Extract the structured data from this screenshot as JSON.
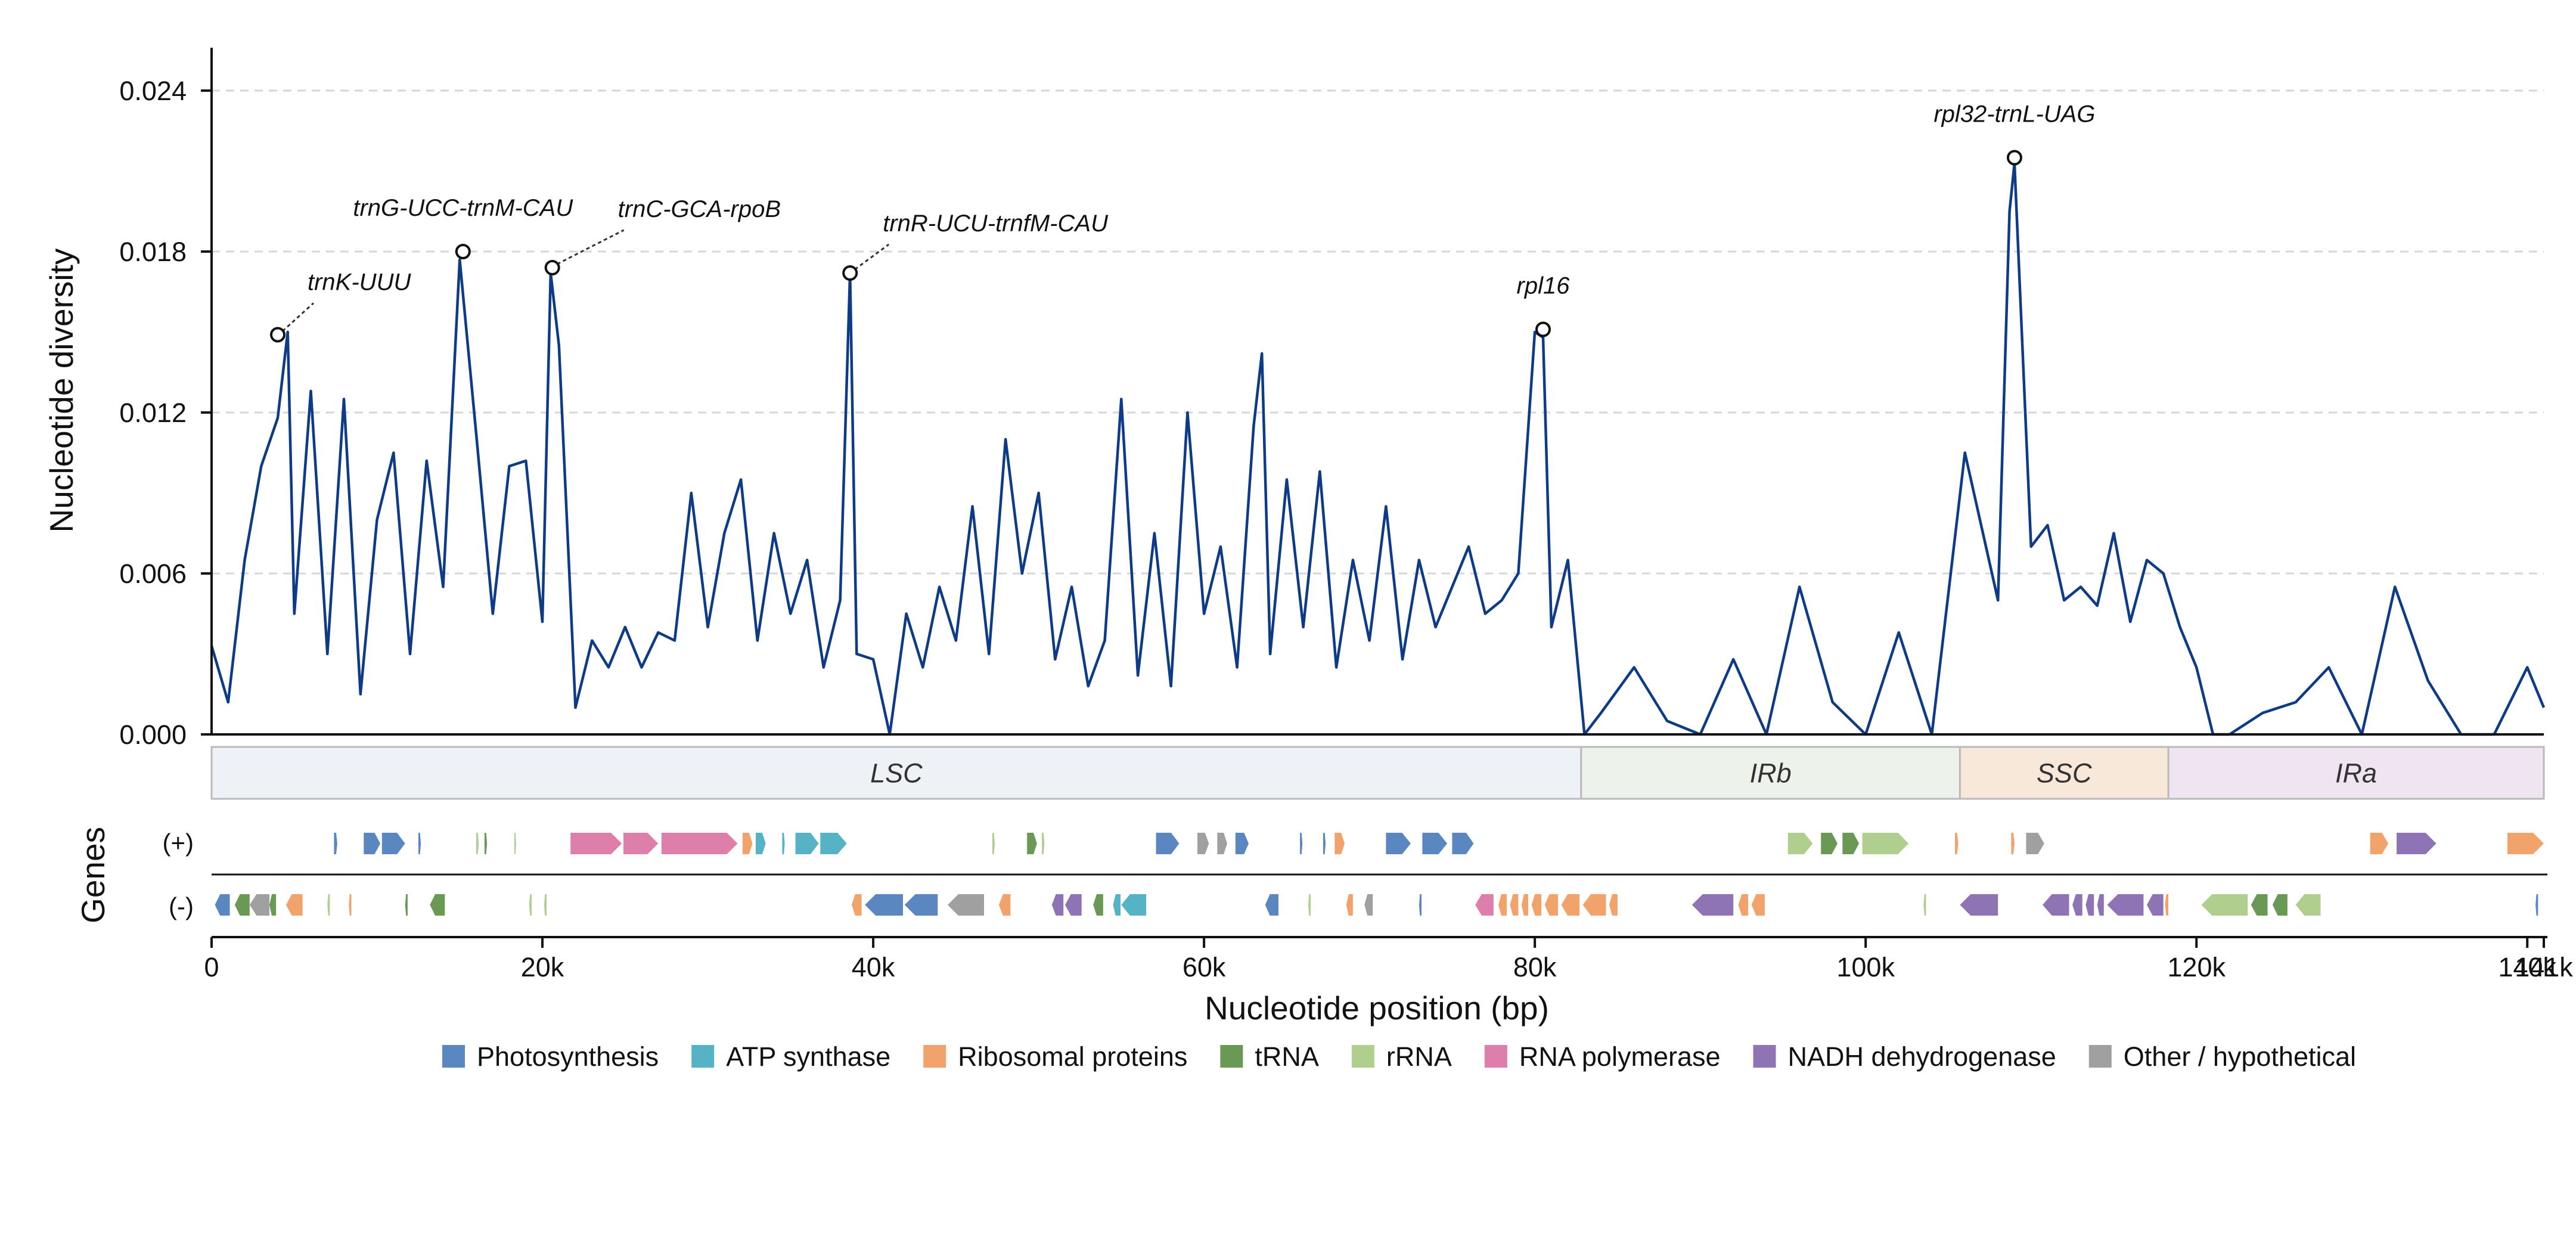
{
  "chart_data": {
    "type": "line",
    "ylabel": "Nucleotide diversity",
    "xlabel": "Nucleotide position (bp)",
    "ylim": [
      0,
      0.0256
    ],
    "xlim": [
      0,
      141000
    ],
    "y_ticks": [
      {
        "value": 0.0,
        "label": "0.000"
      },
      {
        "value": 0.006,
        "label": "0.006"
      },
      {
        "value": 0.012,
        "label": "0.012"
      },
      {
        "value": 0.018,
        "label": "0.018"
      },
      {
        "value": 0.024,
        "label": "0.024"
      }
    ],
    "x_ticks": [
      {
        "value": 0,
        "label": "0"
      },
      {
        "value": 20000,
        "label": "20k"
      },
      {
        "value": 40000,
        "label": "40k"
      },
      {
        "value": 60000,
        "label": "60k"
      },
      {
        "value": 80000,
        "label": "80k"
      },
      {
        "value": 100000,
        "label": "100k"
      },
      {
        "value": 120000,
        "label": "120k"
      },
      {
        "value": 140000,
        "label": "140k"
      },
      {
        "value": 141000,
        "label": "141k"
      }
    ],
    "grid": "horizontal dashed",
    "series": [
      {
        "color": "#0d3b86",
        "x": [
          0,
          1000,
          2000,
          3000,
          4000,
          4600,
          5000,
          6000,
          7000,
          8000,
          9000,
          10000,
          11000,
          12000,
          13000,
          14000,
          15000,
          16000,
          17000,
          18000,
          19000,
          20000,
          20500,
          21000,
          22000,
          23000,
          24000,
          25000,
          26000,
          27000,
          28000,
          29000,
          30000,
          31000,
          32000,
          33000,
          34000,
          35000,
          36000,
          37000,
          38000,
          38600,
          39000,
          40000,
          41000,
          42000,
          43000,
          44000,
          45000,
          46000,
          47000,
          48000,
          49000,
          50000,
          51000,
          52000,
          53000,
          54000,
          55000,
          56000,
          57000,
          58000,
          59000,
          60000,
          61000,
          62000,
          63000,
          63500,
          64000,
          65000,
          66000,
          67000,
          68000,
          69000,
          70000,
          71000,
          72000,
          73000,
          74000,
          75000,
          76000,
          77000,
          78000,
          79000,
          80000,
          80500,
          81000,
          82000,
          83000,
          84000,
          86000,
          87000,
          88000,
          90000,
          92000,
          94000,
          96000,
          98000,
          100000,
          102000,
          104000,
          106000,
          108000,
          108700,
          109000,
          110000,
          111000,
          112000,
          113000,
          114000,
          115000,
          116000,
          117000,
          118000,
          119000,
          120000,
          121000,
          122000,
          124000,
          126000,
          128000,
          130000,
          132000,
          134000,
          136000,
          138000,
          140000,
          141000
        ],
        "values": [
          0.0033,
          0.0012,
          0.0065,
          0.01,
          0.0118,
          0.015,
          0.0045,
          0.0128,
          0.003,
          0.0125,
          0.0015,
          0.008,
          0.0105,
          0.003,
          0.0102,
          0.0055,
          0.0177,
          0.0112,
          0.0045,
          0.01,
          0.0102,
          0.0042,
          0.0172,
          0.0145,
          0.001,
          0.0035,
          0.0025,
          0.004,
          0.0025,
          0.0038,
          0.0035,
          0.009,
          0.004,
          0.0075,
          0.0095,
          0.0035,
          0.0075,
          0.0045,
          0.0065,
          0.0025,
          0.005,
          0.0172,
          0.003,
          0.0028,
          0.0,
          0.0045,
          0.0025,
          0.0055,
          0.0035,
          0.0085,
          0.003,
          0.011,
          0.006,
          0.009,
          0.0028,
          0.0055,
          0.0018,
          0.0035,
          0.0125,
          0.0022,
          0.0075,
          0.0018,
          0.012,
          0.0045,
          0.007,
          0.0025,
          0.0115,
          0.0142,
          0.003,
          0.0095,
          0.004,
          0.0098,
          0.0025,
          0.0065,
          0.0035,
          0.0085,
          0.0028,
          0.0065,
          0.004,
          0.0055,
          0.007,
          0.0045,
          0.005,
          0.006,
          0.015,
          0.0148,
          0.004,
          0.0065,
          0.0,
          0.0008,
          0.0025,
          0.0015,
          0.0005,
          0.0,
          0.0028,
          0.0,
          0.0055,
          0.0012,
          0.0,
          0.0038,
          0.0,
          0.0105,
          0.005,
          0.0195,
          0.0213,
          0.007,
          0.0078,
          0.005,
          0.0055,
          0.0048,
          0.0075,
          0.0042,
          0.0065,
          0.006,
          0.004,
          0.0025,
          0.0,
          0.0,
          0.0008,
          0.0012,
          0.0025,
          0.0,
          0.0055,
          0.002,
          0.0,
          0.0,
          0.0025,
          0.001
        ]
      }
    ],
    "peaks": [
      {
        "label": "trnK-UUU",
        "x": 4000,
        "y": 0.0149
      },
      {
        "label": "trnG-UCC-trnM-CAU",
        "x": 15200,
        "y": 0.018
      },
      {
        "label": "trnC-GCA-rpoB",
        "x": 20600,
        "y": 0.0174
      },
      {
        "label": "trnR-UCU-trnfM-CAU",
        "x": 38600,
        "y": 0.0172
      },
      {
        "label": "rpl16",
        "x": 80500,
        "y": 0.0151
      },
      {
        "label": "rpl32-trnL-UAG",
        "x": 109000,
        "y": 0.0215
      }
    ],
    "regions": [
      {
        "name": "LSC",
        "start": 0,
        "end": 82800,
        "color": "#eef2f7"
      },
      {
        "name": "IRb",
        "start": 82800,
        "end": 105700,
        "color": "#edf3ea"
      },
      {
        "name": "SSC",
        "start": 105700,
        "end": 118300,
        "color": "#f8e8da"
      },
      {
        "name": "IRa",
        "start": 118300,
        "end": 141000,
        "color": "#efe5f0"
      }
    ],
    "genes_track": {
      "title": "Genes",
      "plus_label": "(+)",
      "minus_label": "(-)",
      "plus": [
        {
          "start": 7400,
          "end": 7600,
          "category": "Photosynthesis"
        },
        {
          "start": 9200,
          "end": 10200,
          "category": "Photosynthesis"
        },
        {
          "start": 10300,
          "end": 11700,
          "category": "Photosynthesis"
        },
        {
          "start": 12500,
          "end": 12650,
          "category": "Photosynthesis"
        },
        {
          "start": 16000,
          "end": 16150,
          "category": "rRNA"
        },
        {
          "start": 16500,
          "end": 16650,
          "category": "tRNA"
        },
        {
          "start": 18300,
          "end": 18400,
          "category": "rRNA"
        },
        {
          "start": 21700,
          "end": 24800,
          "category": "RNA polymerase"
        },
        {
          "start": 24900,
          "end": 27000,
          "category": "RNA polymerase"
        },
        {
          "start": 27200,
          "end": 31800,
          "category": "RNA polymerase"
        },
        {
          "start": 32100,
          "end": 32700,
          "category": "Ribosomal proteins"
        },
        {
          "start": 32900,
          "end": 33500,
          "category": "ATP synthase"
        },
        {
          "start": 34500,
          "end": 34650,
          "category": "ATP synthase"
        },
        {
          "start": 35300,
          "end": 36700,
          "category": "ATP synthase"
        },
        {
          "start": 36800,
          "end": 38400,
          "category": "ATP synthase"
        },
        {
          "start": 47200,
          "end": 47350,
          "category": "rRNA"
        },
        {
          "start": 49300,
          "end": 49900,
          "category": "tRNA"
        },
        {
          "start": 50200,
          "end": 50350,
          "category": "rRNA"
        },
        {
          "start": 57100,
          "end": 58500,
          "category": "Photosynthesis"
        },
        {
          "start": 59600,
          "end": 60300,
          "category": "Other / hypothetical"
        },
        {
          "start": 60800,
          "end": 61400,
          "category": "Other / hypothetical"
        },
        {
          "start": 61900,
          "end": 62700,
          "category": "Photosynthesis"
        },
        {
          "start": 65800,
          "end": 65950,
          "category": "Photosynthesis"
        },
        {
          "start": 67200,
          "end": 67350,
          "category": "Photosynthesis"
        },
        {
          "start": 67900,
          "end": 68500,
          "category": "Ribosomal proteins"
        },
        {
          "start": 71000,
          "end": 72500,
          "category": "Photosynthesis"
        },
        {
          "start": 73200,
          "end": 74700,
          "category": "Photosynthesis"
        },
        {
          "start": 75000,
          "end": 76300,
          "category": "Photosynthesis"
        },
        {
          "start": 95300,
          "end": 96800,
          "category": "rRNA"
        },
        {
          "start": 97300,
          "end": 98300,
          "category": "tRNA"
        },
        {
          "start": 98600,
          "end": 99600,
          "category": "tRNA"
        },
        {
          "start": 99800,
          "end": 102600,
          "category": "rRNA"
        },
        {
          "start": 105400,
          "end": 105600,
          "category": "Ribosomal proteins"
        },
        {
          "start": 108800,
          "end": 109000,
          "category": "Ribosomal proteins"
        },
        {
          "start": 109700,
          "end": 110800,
          "category": "Other / hypothetical"
        },
        {
          "start": 130500,
          "end": 131600,
          "category": "Ribosomal proteins"
        },
        {
          "start": 132100,
          "end": 134500,
          "category": "NADH dehydrogenase"
        },
        {
          "start": 138800,
          "end": 141000,
          "category": "Ribosomal proteins"
        }
      ],
      "minus": [
        {
          "start": 200,
          "end": 1100,
          "category": "Photosynthesis"
        },
        {
          "start": 1400,
          "end": 2300,
          "category": "tRNA"
        },
        {
          "start": 2300,
          "end": 3500,
          "category": "Other / hypothetical"
        },
        {
          "start": 3500,
          "end": 3900,
          "category": "tRNA"
        },
        {
          "start": 4500,
          "end": 5500,
          "category": "Ribosomal proteins"
        },
        {
          "start": 7000,
          "end": 7150,
          "category": "rRNA"
        },
        {
          "start": 8300,
          "end": 8450,
          "category": "Ribosomal proteins"
        },
        {
          "start": 11700,
          "end": 11850,
          "category": "tRNA"
        },
        {
          "start": 13200,
          "end": 14100,
          "category": "tRNA"
        },
        {
          "start": 19200,
          "end": 19350,
          "category": "rRNA"
        },
        {
          "start": 20100,
          "end": 20250,
          "category": "rRNA"
        },
        {
          "start": 38700,
          "end": 39300,
          "category": "Ribosomal proteins"
        },
        {
          "start": 39500,
          "end": 41800,
          "category": "Photosynthesis"
        },
        {
          "start": 41900,
          "end": 43900,
          "category": "Photosynthesis"
        },
        {
          "start": 44500,
          "end": 46700,
          "category": "Other / hypothetical"
        },
        {
          "start": 47600,
          "end": 48300,
          "category": "Ribosomal proteins"
        },
        {
          "start": 50800,
          "end": 51500,
          "category": "NADH dehydrogenase"
        },
        {
          "start": 51600,
          "end": 52600,
          "category": "NADH dehydrogenase"
        },
        {
          "start": 53300,
          "end": 53900,
          "category": "tRNA"
        },
        {
          "start": 54500,
          "end": 54950,
          "category": "ATP synthase"
        },
        {
          "start": 55000,
          "end": 56500,
          "category": "ATP synthase"
        },
        {
          "start": 63700,
          "end": 64500,
          "category": "Photosynthesis"
        },
        {
          "start": 66300,
          "end": 66450,
          "category": "rRNA"
        },
        {
          "start": 68600,
          "end": 69000,
          "category": "Ribosomal proteins"
        },
        {
          "start": 69700,
          "end": 70200,
          "category": "Other / hypothetical"
        },
        {
          "start": 73000,
          "end": 73150,
          "category": "Photosynthesis"
        },
        {
          "start": 76400,
          "end": 77500,
          "category": "RNA polymerase"
        },
        {
          "start": 77800,
          "end": 78300,
          "category": "Ribosomal proteins"
        },
        {
          "start": 78500,
          "end": 79000,
          "category": "Ribosomal proteins"
        },
        {
          "start": 79200,
          "end": 79600,
          "category": "Ribosomal proteins"
        },
        {
          "start": 79800,
          "end": 80400,
          "category": "Ribosomal proteins"
        },
        {
          "start": 80600,
          "end": 81400,
          "category": "Ribosomal proteins"
        },
        {
          "start": 81600,
          "end": 82700,
          "category": "Ribosomal proteins"
        },
        {
          "start": 82900,
          "end": 84300,
          "category": "Ribosomal proteins"
        },
        {
          "start": 84500,
          "end": 85000,
          "category": "Ribosomal proteins"
        },
        {
          "start": 89500,
          "end": 92000,
          "category": "NADH dehydrogenase"
        },
        {
          "start": 92300,
          "end": 92900,
          "category": "Ribosomal proteins"
        },
        {
          "start": 93100,
          "end": 93900,
          "category": "Ribosomal proteins"
        },
        {
          "start": 103500,
          "end": 103650,
          "category": "rRNA"
        },
        {
          "start": 105700,
          "end": 108000,
          "category": "NADH dehydrogenase"
        },
        {
          "start": 110700,
          "end": 112300,
          "category": "NADH dehydrogenase"
        },
        {
          "start": 112500,
          "end": 113100,
          "category": "NADH dehydrogenase"
        },
        {
          "start": 113300,
          "end": 113800,
          "category": "NADH dehydrogenase"
        },
        {
          "start": 114000,
          "end": 114400,
          "category": "NADH dehydrogenase"
        },
        {
          "start": 114600,
          "end": 116800,
          "category": "NADH dehydrogenase"
        },
        {
          "start": 117000,
          "end": 118000,
          "category": "NADH dehydrogenase"
        },
        {
          "start": 118100,
          "end": 118300,
          "category": "Ribosomal proteins"
        },
        {
          "start": 120300,
          "end": 123100,
          "category": "rRNA"
        },
        {
          "start": 123300,
          "end": 124300,
          "category": "tRNA"
        },
        {
          "start": 124600,
          "end": 125500,
          "category": "tRNA"
        },
        {
          "start": 126000,
          "end": 127500,
          "category": "rRNA"
        },
        {
          "start": 140500,
          "end": 140650,
          "category": "Photosynthesis"
        }
      ]
    },
    "legend": [
      {
        "label": "Photosynthesis",
        "color": "#5b87c0"
      },
      {
        "label": "ATP synthase",
        "color": "#56b3c6"
      },
      {
        "label": "Ribosomal proteins",
        "color": "#f1a36b"
      },
      {
        "label": "tRNA",
        "color": "#6a9855"
      },
      {
        "label": "rRNA",
        "color": "#b0cf8e"
      },
      {
        "label": "RNA polymerase",
        "color": "#de7eab"
      },
      {
        "label": "NADH dehydrogenase",
        "color": "#8e74b4"
      },
      {
        "label": "Other / hypothetical",
        "color": "#a0a0a0"
      }
    ],
    "legend_position": "bottom"
  }
}
